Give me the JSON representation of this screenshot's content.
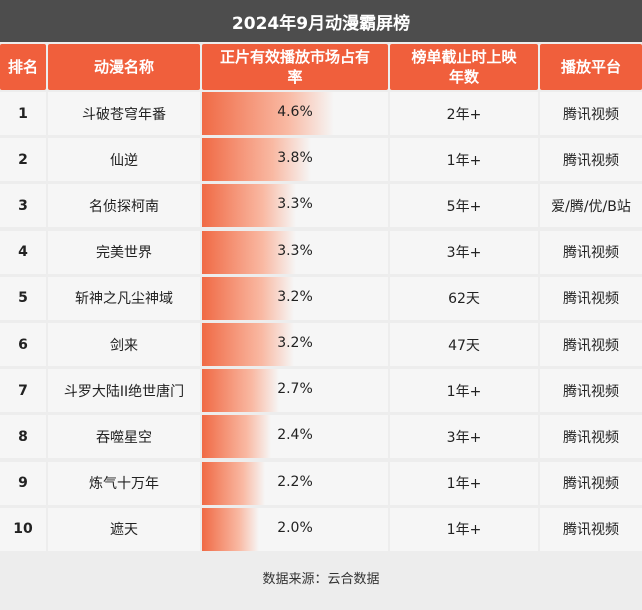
{
  "title": "2024年9月动漫霸屏榜",
  "headers": {
    "rank": "排名",
    "name": "动漫名称",
    "share": "正片有效播放市场占有率",
    "years": "榜单截止时上映年数",
    "platform": "播放平台"
  },
  "rows": [
    {
      "rank": "1",
      "name": "斗破苍穹年番",
      "share": "4.6%",
      "years": "2年+",
      "platform": "腾讯视频"
    },
    {
      "rank": "2",
      "name": "仙逆",
      "share": "3.8%",
      "years": "1年+",
      "platform": "腾讯视频"
    },
    {
      "rank": "3",
      "name": "名侦探柯南",
      "share": "3.3%",
      "years": "5年+",
      "platform": "爱/腾/优/B站"
    },
    {
      "rank": "4",
      "name": "完美世界",
      "share": "3.3%",
      "years": "3年+",
      "platform": "腾讯视频"
    },
    {
      "rank": "5",
      "name": "斩神之凡尘神域",
      "share": "3.2%",
      "years": "62天",
      "platform": "腾讯视频"
    },
    {
      "rank": "6",
      "name": "剑来",
      "share": "3.2%",
      "years": "47天",
      "platform": "腾讯视频"
    },
    {
      "rank": "7",
      "name": "斗罗大陆II绝世唐门",
      "share": "2.7%",
      "years": "1年+",
      "platform": "腾讯视频"
    },
    {
      "rank": "8",
      "name": "吞噬星空",
      "share": "2.4%",
      "years": "3年+",
      "platform": "腾讯视频"
    },
    {
      "rank": "9",
      "name": "炼气十万年",
      "share": "2.2%",
      "years": "1年+",
      "platform": "腾讯视频"
    },
    {
      "rank": "10",
      "name": "遮天",
      "share": "2.0%",
      "years": "1年+",
      "platform": "腾讯视频"
    }
  ],
  "source": "数据来源：云合数据",
  "colors": {
    "header": "#f05f3c",
    "title_bg": "#4d4d4d",
    "bar": "#f06a45"
  },
  "chart_data": {
    "type": "table",
    "title": "2024年9月动漫霸屏榜",
    "columns": [
      "排名",
      "动漫名称",
      "正片有效播放市场占有率",
      "榜单截止时上映年数",
      "播放平台"
    ],
    "categories": [
      "斗破苍穹年番",
      "仙逆",
      "名侦探柯南",
      "完美世界",
      "斩神之凡尘神域",
      "剑来",
      "斗罗大陆II绝世唐门",
      "吞噬星空",
      "炼气十万年",
      "遮天"
    ],
    "values": [
      4.6,
      3.8,
      3.3,
      3.3,
      3.2,
      3.2,
      2.7,
      2.4,
      2.2,
      2.0
    ],
    "ylim": [
      0,
      6.5
    ]
  }
}
